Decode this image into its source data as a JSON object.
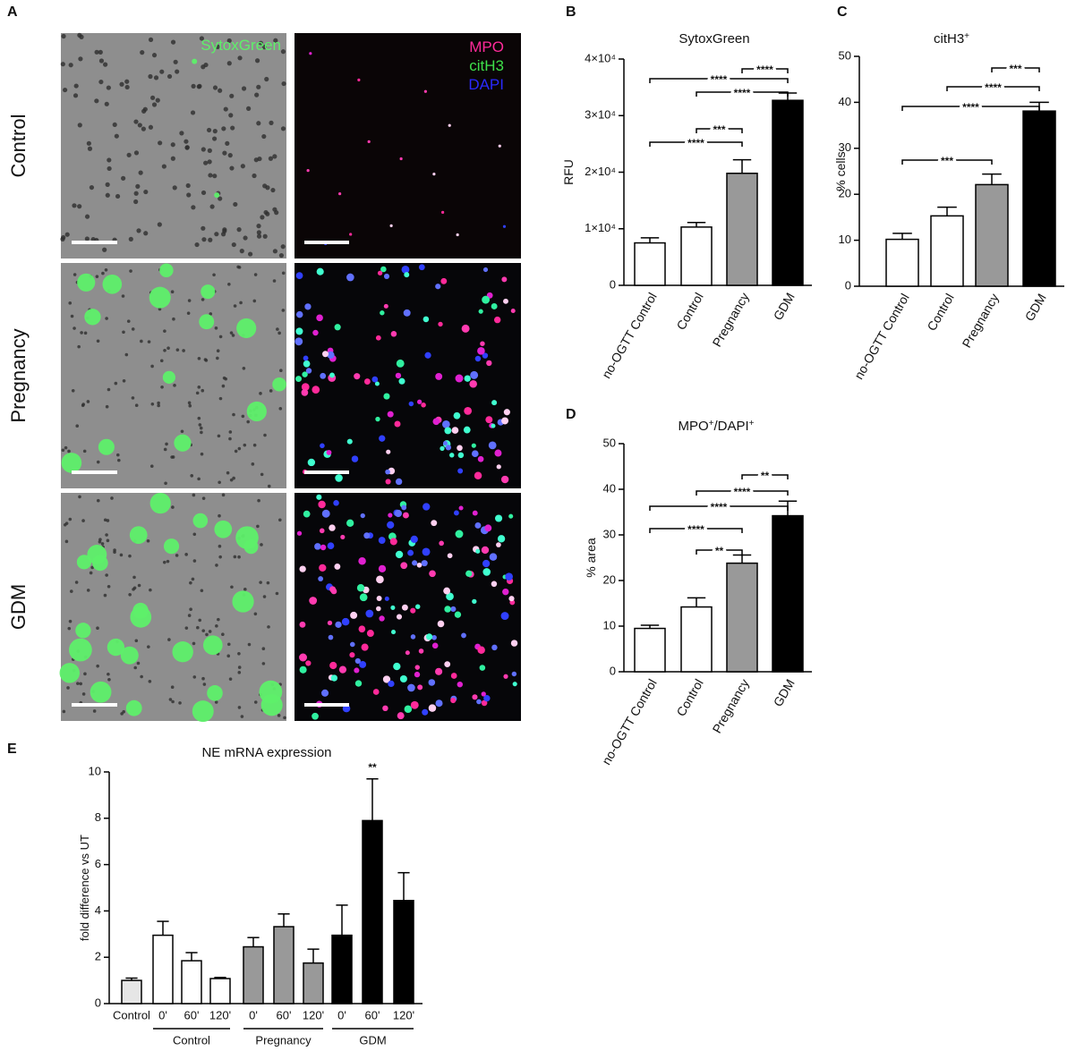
{
  "panel_a": {
    "panel": "A",
    "rows": [
      "Control",
      "Pregnancy",
      "GDM"
    ],
    "stain_left": "SytoxGreen",
    "stains_right": [
      "MPO",
      "citH3",
      "DAPI"
    ]
  },
  "chart_data": [
    {
      "type": "bar",
      "panel": "B",
      "title_parts": [
        {
          "text": "SytoxGreen"
        }
      ],
      "ylabel": "RFU",
      "categories": [
        "no-OGTT Control",
        "Control",
        "Pregnancy",
        "GDM"
      ],
      "values": [
        7500,
        10300,
        19800,
        32700
      ],
      "errors": [
        900,
        800,
        2400,
        1300
      ],
      "colors": [
        "#ffffff",
        "#ffffff",
        "#999999",
        "#000000"
      ],
      "ylim": [
        0,
        40000
      ],
      "yticks": [
        0,
        {
          "value": 10000,
          "label": "1×10⁴"
        },
        {
          "value": 20000,
          "label": "2×10⁴"
        },
        {
          "value": 30000,
          "label": "3×10⁴"
        },
        {
          "value": 40000,
          "label": "4×10⁴"
        }
      ],
      "brackets": [
        {
          "text": "****",
          "from": 2,
          "to": 3
        },
        {
          "text": "****",
          "from": 0,
          "to": 3
        },
        {
          "text": "****",
          "from": 1,
          "to": 3
        },
        {
          "text": "***",
          "from": 1,
          "to": 2
        },
        {
          "text": "****",
          "from": 0,
          "to": 2
        }
      ]
    },
    {
      "type": "bar",
      "panel": "C",
      "title_parts": [
        {
          "text": "citH3"
        },
        {
          "text": "+",
          "sup": true
        }
      ],
      "ylabel": "% cells",
      "categories": [
        "no-OGTT Control",
        "Control",
        "Pregnancy",
        "GDM"
      ],
      "values": [
        10.2,
        15.3,
        22.1,
        38.1
      ],
      "errors": [
        1.3,
        1.9,
        2.3,
        1.9
      ],
      "colors": [
        "#ffffff",
        "#ffffff",
        "#999999",
        "#000000"
      ],
      "ylim": [
        0,
        50
      ],
      "yticks": [
        0,
        10,
        20,
        30,
        40,
        50
      ],
      "brackets": [
        {
          "text": "***",
          "from": 2,
          "to": 3
        },
        {
          "text": "****",
          "from": 1,
          "to": 3
        },
        {
          "text": "****",
          "from": 0,
          "to": 3
        },
        {
          "text": "***",
          "from": 0,
          "to": 2
        }
      ]
    },
    {
      "type": "bar",
      "panel": "D",
      "title_parts": [
        {
          "text": "MPO"
        },
        {
          "text": "+",
          "sup": true
        },
        {
          "text": "/DAPI"
        },
        {
          "text": "+",
          "sup": true
        }
      ],
      "ylabel": "% area",
      "categories": [
        "no-OGTT Control",
        "Control",
        "Pregnancy",
        "GDM"
      ],
      "values": [
        9.5,
        14.2,
        23.8,
        34.2
      ],
      "errors": [
        0.7,
        2.0,
        1.8,
        3.2
      ],
      "colors": [
        "#ffffff",
        "#ffffff",
        "#999999",
        "#000000"
      ],
      "ylim": [
        0,
        50
      ],
      "yticks": [
        0,
        10,
        20,
        30,
        40,
        50
      ],
      "brackets": [
        {
          "text": "**",
          "from": 2,
          "to": 3
        },
        {
          "text": "****",
          "from": 1,
          "to": 3
        },
        {
          "text": "****",
          "from": 0,
          "to": 3
        },
        {
          "text": "****",
          "from": 0,
          "to": 2
        },
        {
          "text": "**",
          "from": 1,
          "to": 2
        }
      ]
    },
    {
      "type": "bar",
      "panel": "E",
      "title_parts": [
        {
          "text": "NE mRNA expression"
        }
      ],
      "ylabel": "fold difference vs UT",
      "categories": [
        "Control",
        "0'",
        "60'",
        "120'",
        "0'",
        "60'",
        "120'",
        "0'",
        "60'",
        "120'"
      ],
      "values": [
        1.0,
        2.95,
        1.85,
        1.08,
        2.45,
        3.32,
        1.75,
        2.95,
        7.9,
        4.45
      ],
      "errors": [
        0.1,
        0.6,
        0.35,
        0.05,
        0.4,
        0.55,
        0.6,
        1.3,
        1.8,
        1.2
      ],
      "colors": [
        "#e6e6e6",
        "#ffffff",
        "#ffffff",
        "#ffffff",
        "#999999",
        "#999999",
        "#999999",
        "#000000",
        "#000000",
        "#000000"
      ],
      "ylim": [
        0,
        10
      ],
      "yticks": [
        0,
        2,
        4,
        6,
        8,
        10
      ],
      "annotations": [
        {
          "text": "**",
          "index": 8
        }
      ],
      "groups": [
        {
          "label": "Control",
          "from": 1,
          "to": 3
        },
        {
          "label": "Pregnancy",
          "from": 4,
          "to": 6
        },
        {
          "label": "GDM",
          "from": 7,
          "to": 9
        }
      ]
    }
  ]
}
